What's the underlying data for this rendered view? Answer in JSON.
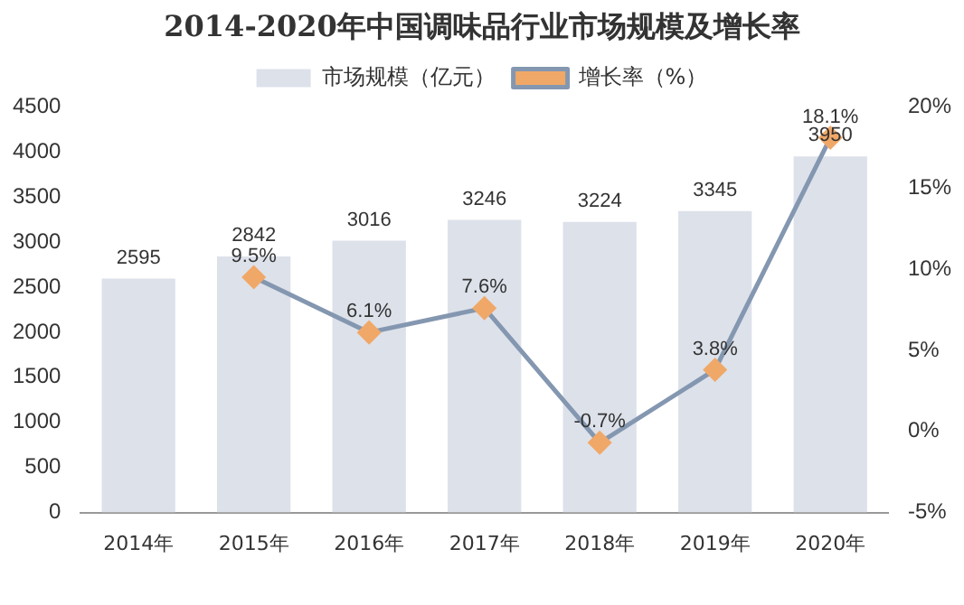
{
  "chart_data": {
    "type": "bar",
    "title": "2014-2020年中国调味品行业市场规模及增长率",
    "categories": [
      "2014年",
      "2015年",
      "2016年",
      "2017年",
      "2018年",
      "2019年",
      "2020年"
    ],
    "series": [
      {
        "name": "市场规模（亿元）",
        "color": "#dde1ea",
        "values": [
          2595,
          2842,
          3016,
          3246,
          3224,
          3345,
          3950
        ],
        "value_labels": [
          "2595",
          "2842",
          "3016",
          "3246",
          "3224",
          "3345",
          "3950"
        ]
      },
      {
        "name": "增长率（%）",
        "type": "line",
        "axis": "y2",
        "color": "#8497b0",
        "colors": [
          "#f0a868",
          "#f0a868",
          "#f0a868",
          "#f0a868",
          "#f0a868",
          "#f0a868",
          "#f0a868"
        ],
        "values": [
          null,
          9.5,
          6.1,
          7.6,
          -0.7,
          3.8,
          18.1
        ],
        "value_labels": [
          null,
          "9.5%",
          "6.1%",
          "7.6%",
          "-0.7%",
          "3.8%",
          "18.1%"
        ]
      }
    ],
    "ylim": [
      0,
      4500
    ],
    "yticks": [
      0,
      500,
      1000,
      1500,
      2000,
      2500,
      3000,
      3500,
      4000,
      4500
    ],
    "y2lim": [
      -5,
      20
    ],
    "y2ticks": [
      {
        "value": -5,
        "label": "-5%"
      },
      {
        "value": 0,
        "label": "0%"
      },
      {
        "value": 5,
        "label": "5%"
      },
      {
        "value": 10,
        "label": "10%"
      },
      {
        "value": 15,
        "label": "15%"
      },
      {
        "value": 20,
        "label": "20%"
      }
    ],
    "legend": "top",
    "grid": false,
    "marker": "diamond",
    "line_style": "solid"
  }
}
